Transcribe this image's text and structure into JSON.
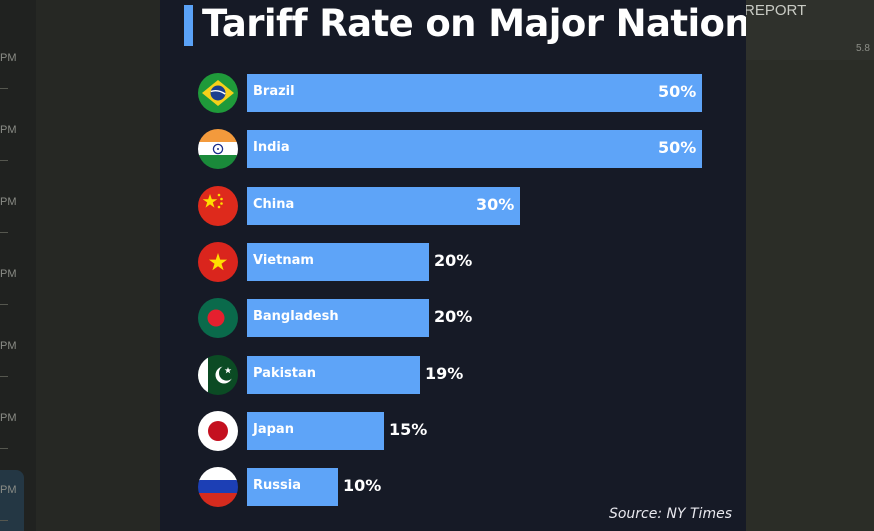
{
  "background": {
    "report_text": "REPORT",
    "report_number": "5.8",
    "side_labels": [
      "PM",
      "PM",
      "PM",
      "PM",
      "PM",
      "PM",
      "PM"
    ]
  },
  "chart_data": {
    "type": "bar",
    "orientation": "horizontal",
    "title": "Tariff Rate on Major Nations",
    "source": "Source: NY Times",
    "categories": [
      "Brazil",
      "India",
      "China",
      "Vietnam",
      "Bangladesh",
      "Pakistan",
      "Japan",
      "Russia"
    ],
    "values": [
      50,
      50,
      30,
      20,
      20,
      19,
      15,
      10
    ],
    "value_labels": [
      "50%",
      "50%",
      "30%",
      "20%",
      "20%",
      "19%",
      "15%",
      "10%"
    ],
    "flags": [
      "brazil-flag-icon",
      "india-flag-icon",
      "china-flag-icon",
      "vietnam-flag-icon",
      "bangladesh-flag-icon",
      "pakistan-flag-icon",
      "japan-flag-icon",
      "russia-flag-icon"
    ],
    "xlim": [
      0,
      50
    ],
    "bar_color": "#5ea4f8",
    "background_color": "#161a26",
    "grid": false,
    "legend": "none"
  }
}
